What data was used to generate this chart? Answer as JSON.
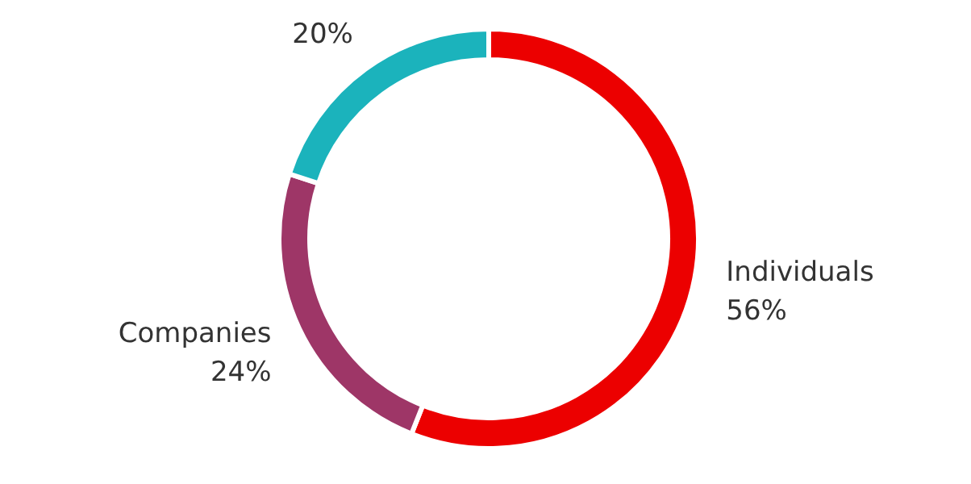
{
  "chart_data": {
    "type": "donut",
    "categories": [
      "Individuals",
      "Companies",
      null
    ],
    "values": [
      56,
      24,
      20
    ],
    "colors": [
      "#ec0000",
      "#9e3667",
      "#1bb3bc"
    ],
    "value_labels": [
      "56%",
      "24%",
      "20%"
    ],
    "legend": false
  }
}
